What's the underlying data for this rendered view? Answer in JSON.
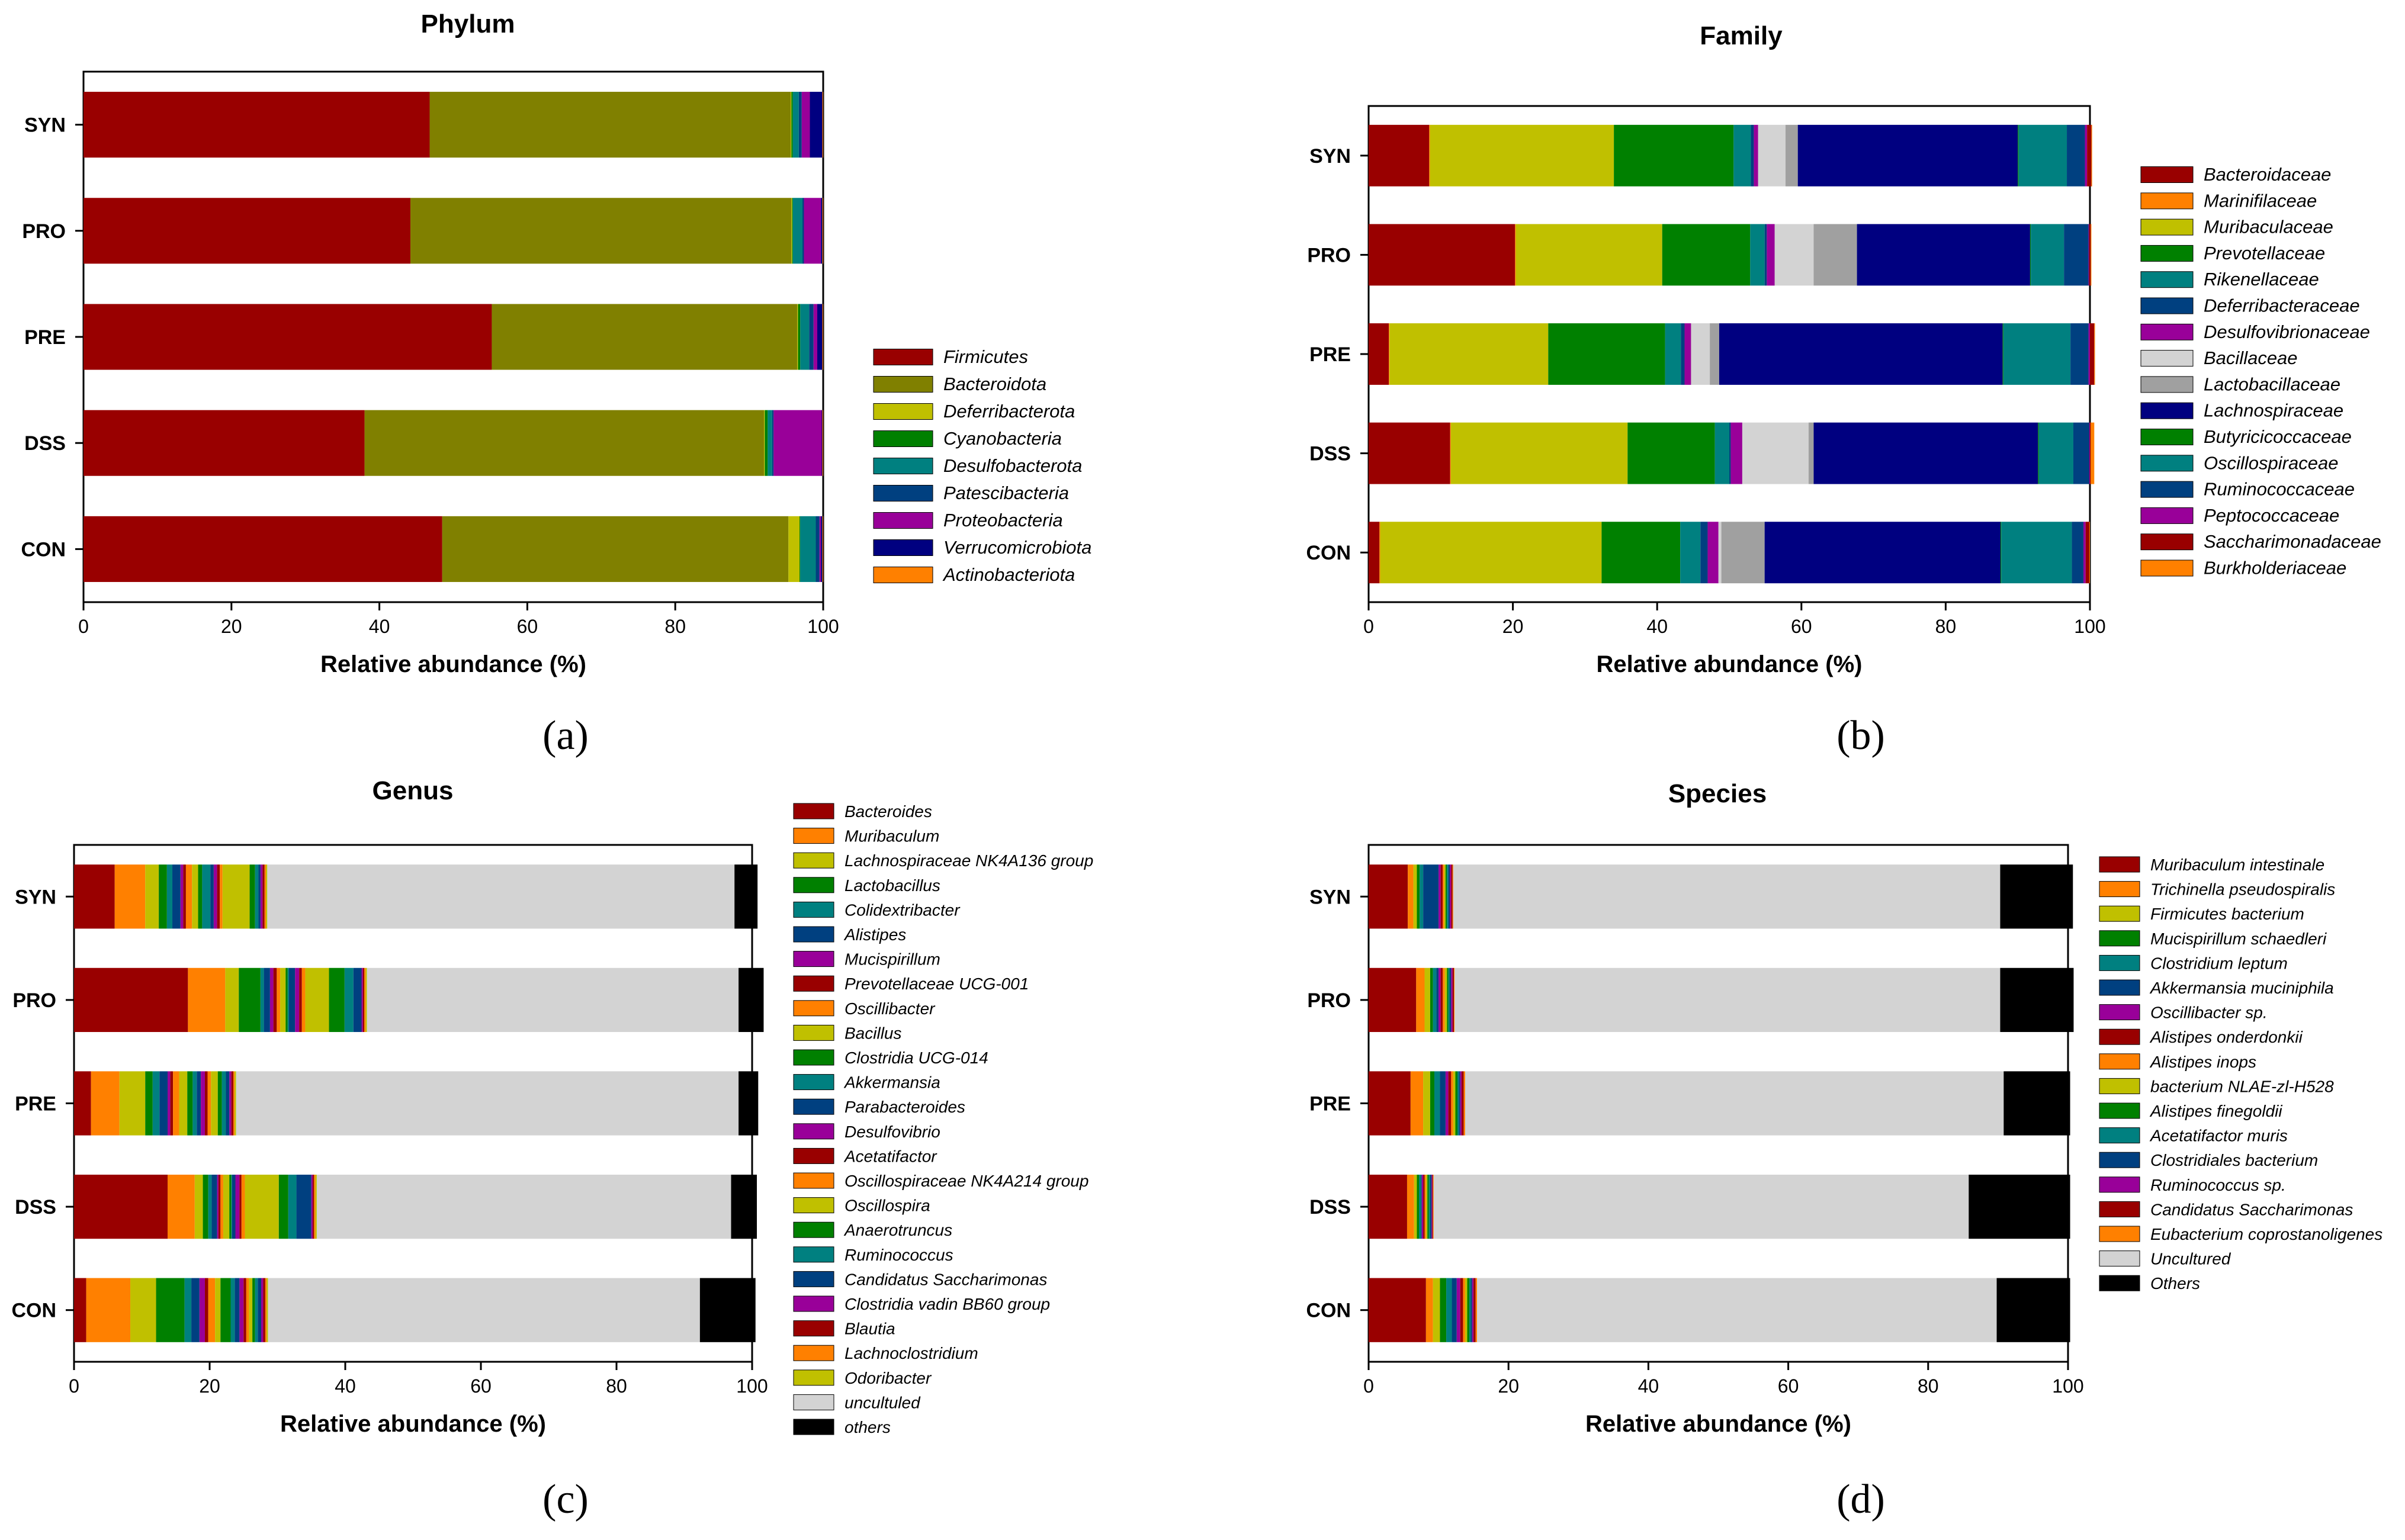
{
  "categories": [
    "CON",
    "DSS",
    "PRE",
    "PRO",
    "SYN"
  ],
  "xlabel": "Relative abundance (%)",
  "xticks": [
    "0",
    "20",
    "40",
    "60",
    "80",
    "100"
  ],
  "chart_data": [
    {
      "panel": "(a)",
      "type": "bar",
      "orientation": "horizontal",
      "stacked": true,
      "title": "Phylum",
      "xlabel": "Relative abundance (%)",
      "xlim": [
        0,
        100
      ],
      "categories": [
        "CON",
        "DSS",
        "PRE",
        "PRO",
        "SYN"
      ],
      "series": [
        {
          "name": "Firmicutes",
          "color": "#990000",
          "values": [
            48.5,
            38.0,
            55.2,
            44.2,
            46.8
          ]
        },
        {
          "name": "Bacteroidota",
          "color": "#808000",
          "values": [
            46.8,
            54.0,
            41.3,
            51.5,
            48.8
          ]
        },
        {
          "name": "Deferribacterota",
          "color": "#c0c000",
          "values": [
            1.5,
            0.1,
            0.1,
            0.1,
            0.1
          ]
        },
        {
          "name": "Cyanobacteria",
          "color": "#008000",
          "values": [
            0.1,
            0.4,
            0.3,
            0.1,
            0.2
          ]
        },
        {
          "name": "Desulfobacterota",
          "color": "#008080",
          "values": [
            2.1,
            0.6,
            1.2,
            1.3,
            0.8
          ]
        },
        {
          "name": "Patescibacteria",
          "color": "#004080",
          "values": [
            0.5,
            0.2,
            0.6,
            0.2,
            0.4
          ]
        },
        {
          "name": "Proteobacteria",
          "color": "#990099",
          "values": [
            0.2,
            6.5,
            0.5,
            2.3,
            1.1
          ]
        },
        {
          "name": "Verrucomicrobiota",
          "color": "#000080",
          "values": [
            0.2,
            0.1,
            0.7,
            0.2,
            1.7
          ]
        },
        {
          "name": "Actinobacteriota",
          "color": "#ff8000",
          "values": [
            0.1,
            0.1,
            0.1,
            0.1,
            0.1
          ]
        }
      ]
    },
    {
      "panel": "(b)",
      "type": "bar",
      "orientation": "horizontal",
      "stacked": true,
      "title": "Family",
      "xlabel": "Relative abundance (%)",
      "xlim": [
        0,
        100
      ],
      "categories": [
        "CON",
        "DSS",
        "PRE",
        "PRO",
        "SYN"
      ],
      "series": [
        {
          "name": "Bacteroidaceae",
          "color": "#990000",
          "values": [
            1.5,
            11.3,
            2.8,
            20.3,
            8.4
          ]
        },
        {
          "name": "Marinifilaceae",
          "color": "#ff8000",
          "values": [
            0.1,
            0.1,
            0.1,
            0.1,
            0.1
          ]
        },
        {
          "name": "Muribaculaceae",
          "color": "#c0c000",
          "values": [
            30.7,
            24.5,
            22.0,
            20.3,
            25.5
          ]
        },
        {
          "name": "Prevotellaceae",
          "color": "#008000",
          "values": [
            10.9,
            12.1,
            16.2,
            12.2,
            16.6
          ]
        },
        {
          "name": "Rikenellaceae",
          "color": "#008080",
          "values": [
            2.8,
            2.0,
            2.2,
            2.0,
            2.4
          ]
        },
        {
          "name": "Deferribacteraceae",
          "color": "#004080",
          "values": [
            1.0,
            0.2,
            0.5,
            0.3,
            0.4
          ]
        },
        {
          "name": "Desulfovibrionaceae",
          "color": "#990099",
          "values": [
            1.5,
            1.6,
            0.9,
            1.1,
            0.6
          ]
        },
        {
          "name": "Bacillaceae",
          "color": "#d3d3d3",
          "values": [
            0.4,
            9.2,
            2.6,
            5.4,
            3.8
          ]
        },
        {
          "name": "Lactobacillaceae",
          "color": "#a0a0a0",
          "values": [
            6.0,
            0.7,
            1.3,
            6.0,
            1.7
          ]
        },
        {
          "name": "Lachnospiraceae",
          "color": "#000080",
          "values": [
            32.7,
            31.1,
            39.3,
            24.0,
            30.5
          ]
        },
        {
          "name": "Butyricicoccaceae",
          "color": "#008000",
          "values": [
            0.1,
            0.1,
            0.1,
            0.1,
            0.1
          ]
        },
        {
          "name": "Oscillospiraceae",
          "color": "#008080",
          "values": [
            9.8,
            4.8,
            9.3,
            4.6,
            6.7
          ]
        },
        {
          "name": "Ruminococcaceae",
          "color": "#004080",
          "values": [
            1.6,
            2.2,
            2.5,
            3.4,
            2.5
          ]
        },
        {
          "name": "Peptococcaceae",
          "color": "#990099",
          "values": [
            0.3,
            0.1,
            0.2,
            0.1,
            0.3
          ]
        },
        {
          "name": "Saccharimonadaceae",
          "color": "#990000",
          "values": [
            0.5,
            0.1,
            0.6,
            0.2,
            0.6
          ]
        },
        {
          "name": "Burkholderiaceae",
          "color": "#ff8000",
          "values": [
            0.1,
            0.5,
            0.1,
            0.1,
            0.1
          ]
        }
      ]
    },
    {
      "panel": "(c)",
      "type": "bar",
      "orientation": "horizontal",
      "stacked": true,
      "title": "Genus",
      "xlabel": "Relative abundance (%)",
      "xlim": [
        0,
        100
      ],
      "categories": [
        "CON",
        "DSS",
        "PRE",
        "PRO",
        "SYN"
      ],
      "series": [
        {
          "name": "Bacteroides",
          "color": "#990000",
          "values": [
            1.8,
            13.8,
            2.5,
            16.8,
            6.0
          ]
        },
        {
          "name": "Muribaculum",
          "color": "#ff8000",
          "values": [
            6.5,
            4.0,
            4.2,
            5.5,
            4.5
          ]
        },
        {
          "name": "Lachnospiraceae NK4A136 group",
          "color": "#c0c000",
          "values": [
            3.8,
            1.2,
            3.8,
            2.0,
            2.0
          ]
        },
        {
          "name": "Lactobacillus",
          "color": "#008000",
          "values": [
            4.2,
            0.8,
            1.1,
            3.2,
            1.2
          ]
        },
        {
          "name": "Colidextribacter",
          "color": "#008080",
          "values": [
            1.0,
            0.5,
            1.0,
            0.5,
            0.8
          ]
        },
        {
          "name": "Alistipes",
          "color": "#004080",
          "values": [
            1.2,
            0.8,
            1.2,
            0.9,
            1.2
          ]
        },
        {
          "name": "Mucispirillum",
          "color": "#990099",
          "values": [
            0.8,
            0.2,
            0.4,
            0.5,
            0.4
          ]
        },
        {
          "name": "Prevotellaceae UCG-001",
          "color": "#990000",
          "values": [
            0.5,
            0.3,
            0.4,
            0.5,
            0.4
          ]
        },
        {
          "name": "Oscillibacter",
          "color": "#ff8000",
          "values": [
            1.0,
            0.4,
            0.9,
            0.5,
            0.9
          ]
        },
        {
          "name": "Bacillus",
          "color": "#c0c000",
          "values": [
            0.8,
            0.9,
            1.2,
            0.8,
            0.9
          ]
        },
        {
          "name": "Clostridia UCG-014",
          "color": "#008000",
          "values": [
            1.5,
            0.3,
            0.8,
            0.3,
            0.6
          ]
        },
        {
          "name": "Akkermansia",
          "color": "#008080",
          "values": [
            0.6,
            0.1,
            0.6,
            0.2,
            1.2
          ]
        },
        {
          "name": "Parabacteroides",
          "color": "#004080",
          "values": [
            0.7,
            0.5,
            0.6,
            0.9,
            0.5
          ]
        },
        {
          "name": "Desulfovibrio",
          "color": "#990099",
          "values": [
            0.6,
            0.6,
            0.6,
            0.6,
            0.5
          ]
        },
        {
          "name": "Acetatifactor",
          "color": "#990000",
          "values": [
            0.4,
            0.3,
            0.4,
            0.4,
            0.4
          ]
        },
        {
          "name": "Oscillospiraceae NK4A214 group",
          "color": "#ff8000",
          "values": [
            0.4,
            0.5,
            0.5,
            0.5,
            0.4
          ]
        },
        {
          "name": "Oscillospira",
          "color": "#c0c000",
          "values": [
            0.5,
            5.0,
            1.0,
            3.5,
            4.0
          ]
        },
        {
          "name": "Anaerotruncus",
          "color": "#008000",
          "values": [
            0.4,
            1.4,
            0.6,
            2.3,
            0.8
          ]
        },
        {
          "name": "Ruminococcus",
          "color": "#008080",
          "values": [
            0.4,
            1.2,
            0.6,
            1.3,
            0.5
          ]
        },
        {
          "name": "Candidatus Saccharimonas",
          "color": "#004080",
          "values": [
            0.5,
            2.2,
            0.5,
            1.2,
            0.3
          ]
        },
        {
          "name": "Clostridia vadin BB60 group",
          "color": "#990099",
          "values": [
            0.3,
            0.2,
            0.3,
            0.2,
            0.3
          ]
        },
        {
          "name": "Blautia",
          "color": "#990000",
          "values": [
            0.3,
            0.2,
            0.3,
            0.2,
            0.3
          ]
        },
        {
          "name": "Lachnoclostridium",
          "color": "#ff8000",
          "values": [
            0.2,
            0.2,
            0.2,
            0.2,
            0.2
          ]
        },
        {
          "name": "Odoribacter",
          "color": "#c0c000",
          "values": [
            0.2,
            0.2,
            0.2,
            0.2,
            0.2
          ]
        },
        {
          "name": "uncultuled",
          "color": "#d3d3d3",
          "values": [
            63.7,
            61.1,
            74.1,
            54.8,
            68.9
          ]
        },
        {
          "name": "others",
          "color": "#000000",
          "values": [
            8.2,
            3.8,
            2.9,
            3.7,
            3.4
          ]
        }
      ]
    },
    {
      "panel": "(d)",
      "type": "bar",
      "orientation": "horizontal",
      "stacked": true,
      "title": "Species",
      "xlabel": "Relative abundance (%)",
      "xlim": [
        0,
        100
      ],
      "categories": [
        "CON",
        "DSS",
        "PRE",
        "PRO",
        "SYN"
      ],
      "series": [
        {
          "name": "Muribaculum intestinale",
          "color": "#990000",
          "values": [
            8.2,
            5.5,
            6.0,
            6.8,
            5.6
          ]
        },
        {
          "name": "Trichinella pseudospiralis",
          "color": "#ff8000",
          "values": [
            1.0,
            1.0,
            1.8,
            1.2,
            0.8
          ]
        },
        {
          "name": "Firmicutes bacterium",
          "color": "#c0c000",
          "values": [
            1.0,
            0.4,
            1.0,
            0.8,
            0.5
          ]
        },
        {
          "name": "Mucispirillum schaedleri",
          "color": "#008000",
          "values": [
            0.9,
            0.3,
            0.6,
            0.4,
            0.4
          ]
        },
        {
          "name": "Clostridium leptum",
          "color": "#008080",
          "values": [
            0.8,
            0.3,
            0.8,
            0.5,
            0.5
          ]
        },
        {
          "name": "Akkermansia muciniphila",
          "color": "#004080",
          "values": [
            0.7,
            0.1,
            0.8,
            0.3,
            2.2
          ]
        },
        {
          "name": "Oscillibacter sp.",
          "color": "#990099",
          "values": [
            0.5,
            0.2,
            0.4,
            0.3,
            0.3
          ]
        },
        {
          "name": "Alistipes onderdonkii",
          "color": "#990000",
          "values": [
            0.4,
            0.2,
            0.4,
            0.3,
            0.3
          ]
        },
        {
          "name": "Alistipes inops",
          "color": "#ff8000",
          "values": [
            0.3,
            0.2,
            0.3,
            0.3,
            0.2
          ]
        },
        {
          "name": "bacterium NLAE-zl-H528",
          "color": "#c0c000",
          "values": [
            0.3,
            0.2,
            0.3,
            0.3,
            0.2
          ]
        },
        {
          "name": "Alistipes finegoldii",
          "color": "#008000",
          "values": [
            0.3,
            0.2,
            0.3,
            0.2,
            0.2
          ]
        },
        {
          "name": "Acetatifactor muris",
          "color": "#008080",
          "values": [
            0.2,
            0.2,
            0.2,
            0.2,
            0.2
          ]
        },
        {
          "name": "Clostridiales bacterium",
          "color": "#004080",
          "values": [
            0.2,
            0.2,
            0.2,
            0.2,
            0.2
          ]
        },
        {
          "name": "Ruminococcus sp.",
          "color": "#990099",
          "values": [
            0.2,
            0.1,
            0.2,
            0.2,
            0.2
          ]
        },
        {
          "name": "Candidatus Saccharimonas",
          "color": "#990000",
          "values": [
            0.3,
            0.1,
            0.3,
            0.2,
            0.2
          ]
        },
        {
          "name": "Eubacterium coprostanoligenes",
          "color": "#ff8000",
          "values": [
            0.2,
            0.1,
            0.2,
            0.1,
            0.1
          ]
        },
        {
          "name": "Uncultured",
          "color": "#d3d3d3",
          "values": [
            74.3,
            76.5,
            77.0,
            78.0,
            78.2
          ]
        },
        {
          "name": "Others",
          "color": "#000000",
          "values": [
            10.5,
            14.5,
            9.5,
            10.5,
            10.4
          ]
        }
      ]
    }
  ]
}
